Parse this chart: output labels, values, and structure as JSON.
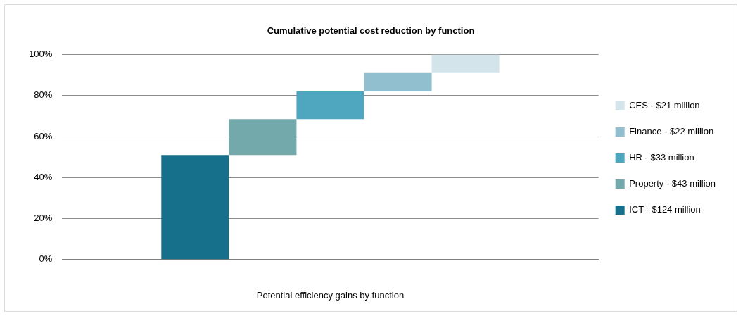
{
  "chart_data": {
    "type": "bar",
    "title": "Cumulative potential cost reduction by function",
    "xlabel": "Potential efficiency gains by function",
    "categories": [
      null
    ],
    "series": [
      {
        "name": "ICT - $124 million",
        "color": "#17708b",
        "values": [
          51
        ],
        "base": [
          0
        ]
      },
      {
        "name": "Property - $43 million",
        "color": "#74a9ab",
        "values": [
          17.5
        ],
        "base": [
          51
        ]
      },
      {
        "name": "HR - $33 million",
        "color": "#4fa6bf",
        "values": [
          13.5
        ],
        "base": [
          68.5
        ]
      },
      {
        "name": "Finance - $22 million",
        "color": "#92bfcf",
        "values": [
          9
        ],
        "base": [
          82
        ]
      },
      {
        "name": "CES - $21 million",
        "color": "#d3e4ea",
        "values": [
          9
        ],
        "base": [
          91
        ]
      }
    ],
    "ylim": [
      0,
      100
    ],
    "yticks": [
      {
        "value": 0,
        "label": "0%"
      },
      {
        "value": 20,
        "label": "20%"
      },
      {
        "value": 40,
        "label": "40%"
      },
      {
        "value": 60,
        "label": "60%"
      },
      {
        "value": 80,
        "label": "80%"
      },
      {
        "value": 100,
        "label": "100%"
      }
    ],
    "grid": "y",
    "legend": "right"
  }
}
